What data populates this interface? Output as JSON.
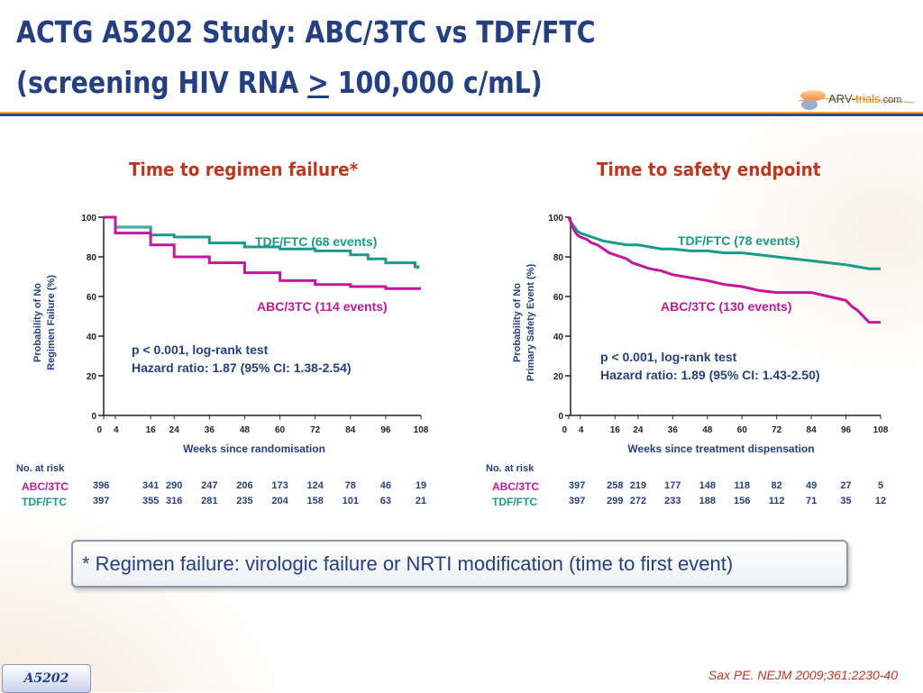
{
  "slide": {
    "title_line1": "ACTG A5202 Study: ABC/3TC vs TDF/FTC",
    "title_line2_prefix": "(screening HIV RNA ",
    "title_line2_symbol": ">",
    "title_line2_suffix": " 100,000 c/mL)",
    "logo_text_a": "ARV-",
    "logo_text_b": "trials",
    "logo_text_c": ".com",
    "footnote": "* Regimen failure: virologic failure or NRTI modification (time to first event)",
    "study_tag": "A5202",
    "citation": "Sax PE. NEJM 2009;361:2230-40",
    "colors": {
      "title": "#243f82",
      "panel_title": "#c0371d",
      "tdf": "#1a9a8a",
      "abc": "#c0199b"
    }
  },
  "chart_data": [
    {
      "type": "line",
      "step": true,
      "panel_title": "Time to regimen failure*",
      "ylabel_line1": "Probability of No",
      "ylabel_line2": "Regimen Failure (%)",
      "xlabel": "Weeks since randomisation",
      "ylim": [
        0,
        100
      ],
      "xlim": [
        0,
        108
      ],
      "yticks": [
        0,
        20,
        40,
        60,
        80,
        100
      ],
      "xticks": [
        0,
        4,
        16,
        24,
        36,
        48,
        60,
        72,
        84,
        96,
        108
      ],
      "series": [
        {
          "name": "TDF/FTC",
          "label": "TDF/FTC (68 events)",
          "color": "#1a9a8a",
          "points": [
            [
              0,
              100
            ],
            [
              4,
              100
            ],
            [
              4,
              95
            ],
            [
              16,
              95
            ],
            [
              16,
              91
            ],
            [
              24,
              91
            ],
            [
              24,
              90
            ],
            [
              36,
              90
            ],
            [
              36,
              87
            ],
            [
              48,
              87
            ],
            [
              48,
              85
            ],
            [
              60,
              85
            ],
            [
              60,
              84
            ],
            [
              72,
              84
            ],
            [
              72,
              83
            ],
            [
              84,
              83
            ],
            [
              84,
              81
            ],
            [
              90,
              81
            ],
            [
              90,
              79
            ],
            [
              96,
              79
            ],
            [
              96,
              77
            ],
            [
              106,
              77
            ],
            [
              106,
              75
            ],
            [
              107,
              75
            ],
            [
              107,
              74
            ]
          ]
        },
        {
          "name": "ABC/3TC",
          "label": "ABC/3TC (114 events)",
          "color": "#c0199b",
          "points": [
            [
              0,
              100
            ],
            [
              4,
              100
            ],
            [
              4,
              92
            ],
            [
              16,
              92
            ],
            [
              16,
              86
            ],
            [
              24,
              86
            ],
            [
              24,
              80
            ],
            [
              36,
              80
            ],
            [
              36,
              77
            ],
            [
              48,
              77
            ],
            [
              48,
              72
            ],
            [
              60,
              72
            ],
            [
              60,
              68
            ],
            [
              72,
              68
            ],
            [
              72,
              66
            ],
            [
              84,
              66
            ],
            [
              84,
              65
            ],
            [
              96,
              65
            ],
            [
              96,
              64
            ],
            [
              108,
              64
            ]
          ]
        }
      ],
      "annotation_line1": "p < 0.001, log-rank test",
      "annotation_line2": "Hazard ratio: 1.87 (95% CI: 1.38-2.54)",
      "risk_table": {
        "header": "No. at risk",
        "rows": [
          {
            "name": "ABC/3TC",
            "color": "#c0199b",
            "values": [
              "396",
              "341",
              "290",
              "247",
              "206",
              "173",
              "124",
              "78",
              "46",
              "19"
            ]
          },
          {
            "name": "TDF/FTC",
            "color": "#1a9a8a",
            "values": [
              "397",
              "355",
              "316",
              "281",
              "235",
              "204",
              "158",
              "101",
              "63",
              "21"
            ]
          }
        ]
      }
    },
    {
      "type": "line",
      "step": true,
      "panel_title": "Time to safety endpoint",
      "ylabel_line1": "Probability of No",
      "ylabel_line2": "Primary Safety Event (%)",
      "xlabel": "Weeks since treatment dispensation",
      "ylim": [
        0,
        100
      ],
      "xlim": [
        0,
        108
      ],
      "yticks": [
        0,
        20,
        40,
        60,
        80,
        100
      ],
      "xticks": [
        0,
        4,
        16,
        24,
        36,
        48,
        60,
        72,
        84,
        96,
        108
      ],
      "series": [
        {
          "name": "TDF/FTC",
          "label": "TDF/FTC (78 events)",
          "color": "#1a9a8a",
          "points": [
            [
              0,
              100
            ],
            [
              1,
              97
            ],
            [
              2,
              95
            ],
            [
              3,
              93
            ],
            [
              4,
              92
            ],
            [
              6,
              91
            ],
            [
              8,
              90
            ],
            [
              10,
              89
            ],
            [
              12,
              88
            ],
            [
              16,
              87
            ],
            [
              20,
              86
            ],
            [
              24,
              86
            ],
            [
              28,
              85
            ],
            [
              32,
              84
            ],
            [
              36,
              84
            ],
            [
              42,
              83
            ],
            [
              48,
              83
            ],
            [
              54,
              82
            ],
            [
              60,
              82
            ],
            [
              66,
              81
            ],
            [
              72,
              80
            ],
            [
              78,
              79
            ],
            [
              84,
              78
            ],
            [
              90,
              77
            ],
            [
              96,
              76
            ],
            [
              100,
              75
            ],
            [
              104,
              74
            ],
            [
              108,
              74
            ]
          ]
        },
        {
          "name": "ABC/3TC",
          "label": "ABC/3TC (130 events)",
          "color": "#c0199b",
          "points": [
            [
              0,
              100
            ],
            [
              1,
              96
            ],
            [
              2,
              93
            ],
            [
              3,
              91
            ],
            [
              4,
              90
            ],
            [
              6,
              89
            ],
            [
              8,
              87
            ],
            [
              10,
              86
            ],
            [
              12,
              84
            ],
            [
              14,
              82
            ],
            [
              16,
              81
            ],
            [
              18,
              80
            ],
            [
              20,
              79
            ],
            [
              22,
              77
            ],
            [
              24,
              76
            ],
            [
              28,
              74
            ],
            [
              32,
              73
            ],
            [
              36,
              71
            ],
            [
              40,
              70
            ],
            [
              44,
              69
            ],
            [
              48,
              68
            ],
            [
              54,
              66
            ],
            [
              60,
              65
            ],
            [
              66,
              63
            ],
            [
              72,
              62
            ],
            [
              84,
              62
            ],
            [
              90,
              60
            ],
            [
              96,
              58
            ],
            [
              98,
              55
            ],
            [
              100,
              53
            ],
            [
              104,
              47
            ],
            [
              108,
              47
            ]
          ]
        }
      ],
      "annotation_line1": "p < 0.001, log-rank test",
      "annotation_line2": "Hazard ratio: 1.89 (95% CI: 1.43-2.50)",
      "risk_table": {
        "header": "No. at risk",
        "rows": [
          {
            "name": "ABC/3TC",
            "color": "#c0199b",
            "values": [
              "397",
              "258",
              "219",
              "177",
              "148",
              "118",
              "82",
              "49",
              "27",
              "5"
            ]
          },
          {
            "name": "TDF/FTC",
            "color": "#1a9a8a",
            "values": [
              "397",
              "299",
              "272",
              "233",
              "188",
              "156",
              "112",
              "71",
              "35",
              "12"
            ]
          }
        ]
      }
    }
  ]
}
